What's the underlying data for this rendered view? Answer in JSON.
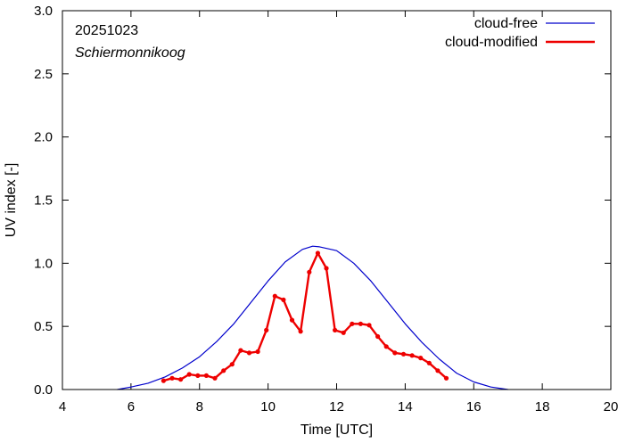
{
  "chart_data": {
    "type": "line",
    "title": "",
    "xlabel": "Time  [UTC]",
    "ylabel": "UV index  [-]",
    "xlim": [
      4,
      20
    ],
    "ylim": [
      0.0,
      3.0
    ],
    "xticks": [
      4,
      6,
      8,
      10,
      12,
      14,
      16,
      18,
      20
    ],
    "xtick_labels": [
      "4",
      "6",
      "8",
      "10",
      "12",
      "14",
      "16",
      "18",
      "20"
    ],
    "yticks": [
      0.0,
      0.5,
      1.0,
      1.5,
      2.0,
      2.5,
      3.0
    ],
    "ytick_labels": [
      "0.0",
      "0.5",
      "1.0",
      "1.5",
      "2.0",
      "2.5",
      "3.0"
    ],
    "grid": false,
    "legend_position": "top-right",
    "annotations": {
      "date": "20251023",
      "location": "Schiermonnikoog"
    },
    "series": [
      {
        "name": "cloud-free",
        "color": "#0000cc",
        "style": "line",
        "x": [
          5.6,
          6.0,
          6.5,
          7.0,
          7.5,
          8.0,
          8.5,
          9.0,
          9.5,
          10.0,
          10.5,
          11.0,
          11.3,
          11.5,
          12.0,
          12.5,
          13.0,
          13.5,
          14.0,
          14.5,
          15.0,
          15.5,
          16.0,
          16.5,
          17.0
        ],
        "y": [
          0.0,
          0.02,
          0.05,
          0.1,
          0.17,
          0.26,
          0.38,
          0.52,
          0.69,
          0.86,
          1.01,
          1.11,
          1.135,
          1.13,
          1.1,
          1.0,
          0.86,
          0.69,
          0.52,
          0.37,
          0.24,
          0.13,
          0.06,
          0.02,
          0.0
        ]
      },
      {
        "name": "cloud-modified",
        "color": "#ee0000",
        "style": "line-markers",
        "x": [
          6.95,
          7.2,
          7.45,
          7.7,
          7.95,
          8.2,
          8.45,
          8.7,
          8.95,
          9.2,
          9.45,
          9.7,
          9.95,
          10.2,
          10.45,
          10.7,
          10.95,
          11.2,
          11.45,
          11.7,
          11.95,
          12.2,
          12.45,
          12.7,
          12.95,
          13.2,
          13.45,
          13.7,
          13.95,
          14.2,
          14.45,
          14.7,
          14.95,
          15.2
        ],
        "y": [
          0.07,
          0.09,
          0.08,
          0.12,
          0.11,
          0.11,
          0.09,
          0.15,
          0.2,
          0.31,
          0.29,
          0.3,
          0.47,
          0.74,
          0.71,
          0.55,
          0.46,
          0.93,
          1.08,
          0.96,
          0.47,
          0.45,
          0.52,
          0.52,
          0.51,
          0.42,
          0.34,
          0.29,
          0.28,
          0.27,
          0.25,
          0.21,
          0.15,
          0.09
        ]
      }
    ]
  }
}
